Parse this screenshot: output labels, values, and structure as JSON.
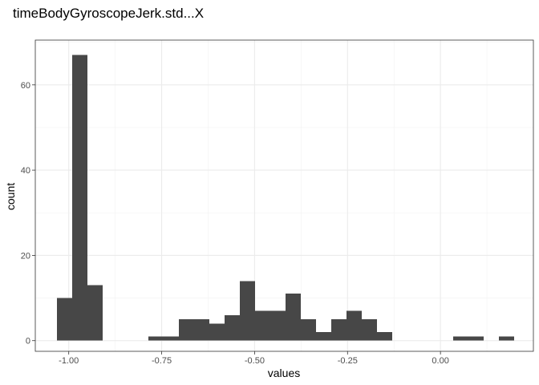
{
  "chart_data": {
    "type": "bar",
    "title": "timeBodyGyroscopeJerk.std...X",
    "xlabel": "values",
    "ylabel": "count",
    "xlim": [
      -1.09,
      0.25
    ],
    "ylim": [
      -2.5,
      70.5
    ],
    "x_ticks": [
      {
        "value": -1.0,
        "label": "-1.00"
      },
      {
        "value": -0.75,
        "label": "-0.75"
      },
      {
        "value": -0.5,
        "label": "-0.50"
      },
      {
        "value": -0.25,
        "label": "-0.25"
      },
      {
        "value": 0.0,
        "label": "0.00"
      }
    ],
    "y_ticks": [
      {
        "value": 0,
        "label": "0"
      },
      {
        "value": 20,
        "label": "20"
      },
      {
        "value": 40,
        "label": "40"
      },
      {
        "value": 60,
        "label": "60"
      }
    ],
    "bin_width": 0.041,
    "bin_start": -1.032,
    "counts": [
      10,
      67,
      13,
      0,
      0,
      0,
      1,
      1,
      5,
      5,
      4,
      6,
      14,
      7,
      7,
      11,
      5,
      2,
      5,
      7,
      5,
      2,
      0,
      0,
      0,
      0,
      1,
      1,
      0,
      1
    ],
    "grid": true,
    "bar_color": "#474747"
  }
}
